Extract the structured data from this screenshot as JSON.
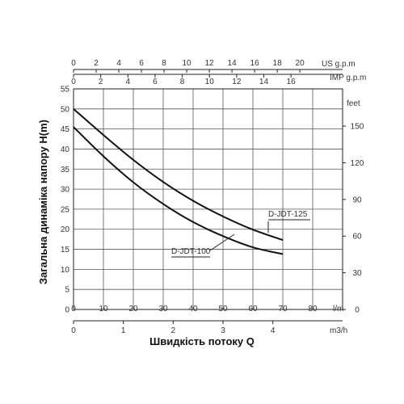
{
  "chart_data": {
    "type": "line",
    "x": {
      "label": "l/m",
      "ticks": [
        "0",
        "10",
        "20",
        "30",
        "40",
        "50",
        "60",
        "70",
        "80"
      ],
      "range": [
        0,
        90
      ]
    },
    "y": {
      "title": "Загальна динаміка напору H(m)",
      "ticks": [
        "0",
        "5",
        "10",
        "15",
        "20",
        "25",
        "30",
        "35",
        "40",
        "45",
        "50",
        "55"
      ],
      "range": [
        0,
        55
      ]
    },
    "y_right": {
      "label": "feet",
      "ticks": [
        "0",
        "30",
        "60",
        "90",
        "120",
        "150"
      ]
    },
    "x_top_us": {
      "label": "US g.p.m",
      "ticks": [
        "0",
        "2",
        "4",
        "6",
        "8",
        "10",
        "12",
        "14",
        "16",
        "18",
        "20"
      ]
    },
    "x_top_imp": {
      "label": "IMP g.p.m",
      "ticks": [
        "0",
        "2",
        "4",
        "6",
        "8",
        "10",
        "12",
        "14",
        "16"
      ]
    },
    "x_bottom_m3h": {
      "label": "m3/h",
      "ticks": [
        "0",
        "1",
        "2",
        "3",
        "4"
      ]
    },
    "xlabel": "Швидкість потоку Q",
    "grid": true,
    "series": [
      {
        "name": "D-JDT-125",
        "x": [
          0,
          10,
          20,
          30,
          40,
          50,
          60,
          70
        ],
        "y": [
          50,
          43.5,
          37.3,
          31.8,
          27.1,
          23.2,
          19.9,
          17.3
        ]
      },
      {
        "name": "D-JDT-100",
        "x": [
          0,
          10,
          20,
          30,
          40,
          50,
          60,
          70
        ],
        "y": [
          45.5,
          38.2,
          31.7,
          26.3,
          21.8,
          18.3,
          15.5,
          13.8
        ]
      }
    ]
  }
}
